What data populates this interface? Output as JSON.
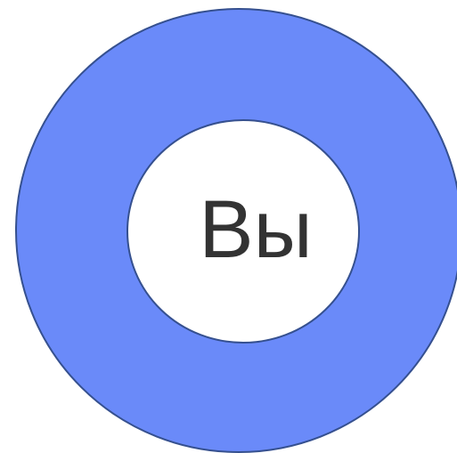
{
  "label": "Вы"
}
